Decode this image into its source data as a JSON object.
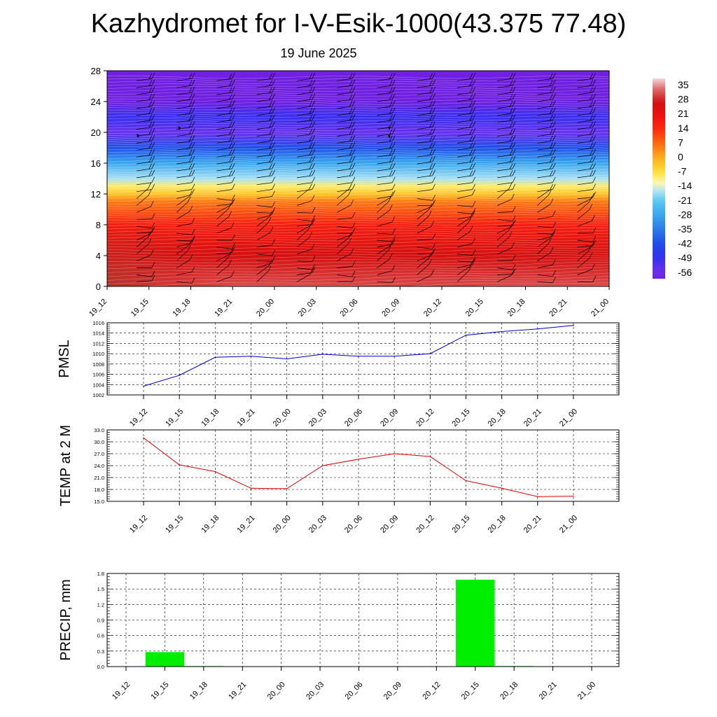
{
  "page": {
    "title": "Kazhydromet for I-V-Esik-1000(43.375 77.48)",
    "date": "19 June 2025"
  },
  "chart_data": [
    {
      "type": "heatmap",
      "title": "",
      "x_tick_labels": [
        "19_12",
        "19_15",
        "19_18",
        "19_21",
        "20_00",
        "20_03",
        "20_06",
        "20_09",
        "20_12",
        "20_15",
        "20_18",
        "20_21",
        "21_00"
      ],
      "y_ticks": [
        0,
        4,
        8,
        12,
        16,
        20,
        24,
        28
      ],
      "ylim": [
        0,
        28
      ],
      "colorbar": {
        "labels": [
          "35",
          "28",
          "21",
          "14",
          "7",
          "0",
          "-7",
          "-14",
          "-21",
          "-28",
          "-35",
          "-42",
          "-49",
          "-56"
        ],
        "min": -60,
        "max": 40
      },
      "temperature_profile_by_level": [
        {
          "level": 0,
          "value": 32
        },
        {
          "level": 4,
          "value": 27
        },
        {
          "level": 8,
          "value": 18
        },
        {
          "level": 11,
          "value": 6
        },
        {
          "level": 12,
          "value": -3
        },
        {
          "level": 13,
          "value": -9
        },
        {
          "level": 14,
          "value": -17
        },
        {
          "level": 16,
          "value": -28
        },
        {
          "level": 18,
          "value": -42
        },
        {
          "level": 20,
          "value": -56
        },
        {
          "level": 22,
          "value": -50
        },
        {
          "level": 24,
          "value": -60
        },
        {
          "level": 28,
          "value": -60
        }
      ],
      "wind_barbs": true
    },
    {
      "type": "line",
      "ylabel": "PMSL",
      "x": [
        "19_12",
        "19_15",
        "19_18",
        "19_21",
        "20_00",
        "20_03",
        "20_06",
        "20_09",
        "20_12",
        "20_15",
        "20_18",
        "20_21",
        "21_00"
      ],
      "series": [
        {
          "color": "#0000cc",
          "values": [
            1003.7,
            1005.8,
            1009.3,
            1009.5,
            1009.0,
            1009.9,
            1009.5,
            1009.5,
            1010.0,
            1013.6,
            1014.3,
            1014.8,
            1015.5
          ]
        }
      ],
      "y_ticks": [
        "1016",
        "1014",
        "1012",
        "1010",
        "1008",
        "1006",
        "1004",
        "1002"
      ],
      "ylim": [
        1002,
        1016
      ],
      "grid": true
    },
    {
      "type": "line",
      "ylabel": "TEMP at 2 M",
      "x": [
        "19_12",
        "19_15",
        "19_18",
        "19_21",
        "20_00",
        "20_03",
        "20_06",
        "20_09",
        "20_12",
        "20_15",
        "20_18",
        "20_21",
        "21_00"
      ],
      "series": [
        {
          "color": "#dd0000",
          "values": [
            31.0,
            24.2,
            22.5,
            18.3,
            18.2,
            24.0,
            25.6,
            27.0,
            26.3,
            20.2,
            18.3,
            16.2,
            16.3
          ]
        }
      ],
      "y_ticks": [
        "33.0",
        "30.0",
        "27.0",
        "24.0",
        "21.0",
        "18.0",
        "15.0"
      ],
      "ylim": [
        15,
        33
      ],
      "grid": true
    },
    {
      "type": "bar",
      "ylabel": "PRECIP, mm",
      "categories": [
        "19_12",
        "19_15",
        "19_18",
        "19_21",
        "20_00",
        "20_03",
        "20_06",
        "20_09",
        "20_12",
        "20_15",
        "20_18",
        "20_21",
        "21_00"
      ],
      "values": [
        0,
        0.28,
        0.01,
        0,
        0,
        0,
        0,
        0,
        0,
        1.68,
        0.01,
        0,
        0
      ],
      "bar_color": "#00ee00",
      "y_ticks": [
        "1.8",
        "1.5",
        "1.2",
        "0.9",
        "0.6",
        "0.3",
        "0.0"
      ],
      "ylim": [
        0,
        1.8
      ],
      "grid": true
    }
  ]
}
